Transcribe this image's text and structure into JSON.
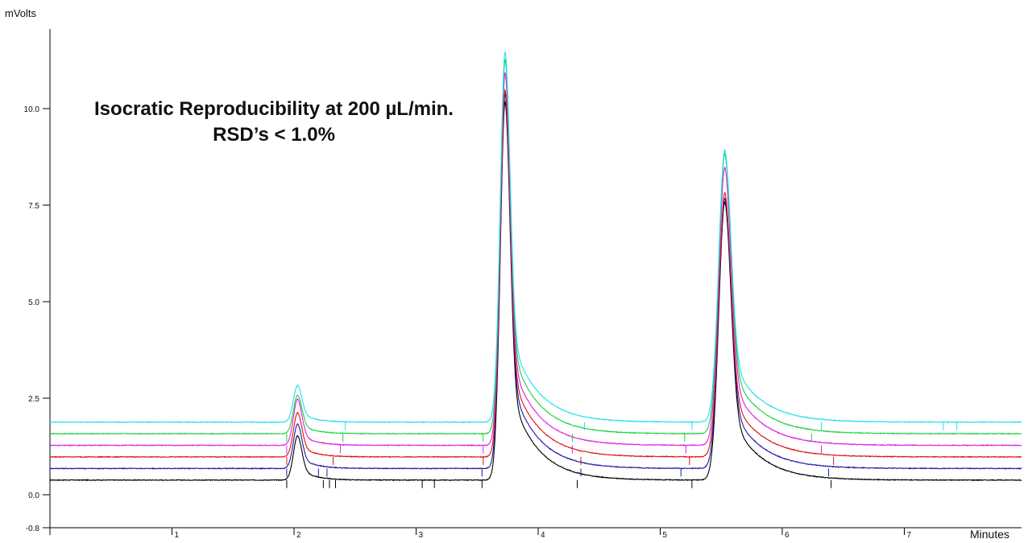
{
  "chart_data": {
    "type": "line",
    "title": "Isocratic Reproducibility at 200 µL/min.",
    "subtitle": "RSD’s < 1.0%",
    "xlabel": "Minutes",
    "ylabel": "mVolts",
    "xlim": [
      0,
      8.0
    ],
    "ylim": [
      -0.8,
      12.0
    ],
    "x_ticks": [
      {
        "value": 1,
        "label": "1"
      },
      {
        "value": 2,
        "label": "2"
      },
      {
        "value": 3,
        "label": "3"
      },
      {
        "value": 4,
        "label": "4"
      },
      {
        "value": 5,
        "label": "5"
      },
      {
        "value": 6,
        "label": "6"
      },
      {
        "value": 7,
        "label": "7"
      }
    ],
    "y_ticks": [
      {
        "value": -0.8,
        "label": "-0.8"
      },
      {
        "value": 0.0,
        "label": "0.0"
      },
      {
        "value": 2.5,
        "label": "2.5"
      },
      {
        "value": 5.0,
        "label": "5.0"
      },
      {
        "value": 7.5,
        "label": "7.5"
      },
      {
        "value": 10.0,
        "label": "10.0"
      }
    ],
    "grid": false,
    "peak_times": [
      2.03,
      3.73,
      5.53
    ],
    "series": [
      {
        "color": "#000000",
        "baseline": 0.38,
        "peak_heights": [
          1.15,
          9.8,
          7.2
        ]
      },
      {
        "color": "#1a1aa6",
        "baseline": 0.68,
        "peak_heights": [
          1.15,
          9.7,
          7.0
        ]
      },
      {
        "color": "#e01010",
        "baseline": 0.98,
        "peak_heights": [
          1.15,
          9.5,
          6.85
        ]
      },
      {
        "color": "#e020e0",
        "baseline": 1.28,
        "peak_heights": [
          1.2,
          9.65,
          7.2
        ]
      },
      {
        "color": "#20d040",
        "baseline": 1.58,
        "peak_heights": [
          1.0,
          9.7,
          7.25
        ]
      },
      {
        "color": "#20e0f0",
        "baseline": 1.88,
        "peak_heights": [
          0.95,
          9.6,
          7.05
        ]
      }
    ]
  }
}
